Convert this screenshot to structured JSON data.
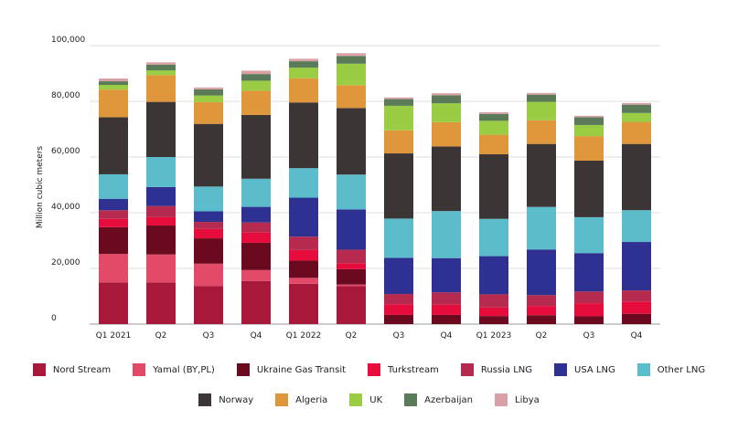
{
  "chart_data": {
    "type": "bar",
    "stacked": true,
    "ylabel": "Million cubic meters",
    "xlabel": "",
    "ylim": [
      0,
      100000
    ],
    "yticks": [
      0,
      20000,
      40000,
      60000,
      80000,
      100000
    ],
    "ytick_labels": [
      "0",
      "20,000",
      "40,000",
      "60,000",
      "80,000",
      "100,000"
    ],
    "categories": [
      "Q1 2021",
      "Q2",
      "Q3",
      "Q4",
      "Q1 2022",
      "Q2",
      "Q3",
      "Q4",
      "Q1 2023",
      "Q2",
      "Q3",
      "Q4"
    ],
    "grid": true,
    "legend_position": "bottom",
    "series": [
      {
        "name": "Nord Stream",
        "color": "#a8183a",
        "values": [
          15000,
          15000,
          13700,
          15500,
          14500,
          13700,
          0,
          0,
          0,
          0,
          0,
          0
        ]
      },
      {
        "name": "Yamal (BY,PL)",
        "color": "#e34a68",
        "values": [
          10200,
          10000,
          8000,
          3900,
          2100,
          500,
          0,
          0,
          0,
          0,
          0,
          0
        ]
      },
      {
        "name": "Ukraine Gas Transit",
        "color": "#6b0a1e",
        "values": [
          9600,
          10400,
          9100,
          9800,
          6200,
          5500,
          3300,
          3300,
          2900,
          3200,
          2800,
          3700
        ]
      },
      {
        "name": "Turkstream",
        "color": "#e60c3c",
        "values": [
          3000,
          3000,
          3400,
          3700,
          3800,
          2200,
          3800,
          3700,
          3100,
          3300,
          4700,
          4400
        ]
      },
      {
        "name": "Russia LNG",
        "color": "#b52a4e",
        "values": [
          3100,
          4000,
          2500,
          3600,
          4800,
          4800,
          3700,
          4400,
          4700,
          3900,
          4200,
          4000
        ]
      },
      {
        "name": "USA LNG",
        "color": "#2e3192",
        "values": [
          4100,
          6800,
          3800,
          5600,
          14000,
          14500,
          13000,
          12300,
          13700,
          16400,
          13800,
          17400
        ]
      },
      {
        "name": "Other LNG",
        "color": "#5bbccc",
        "values": [
          8800,
          10800,
          8900,
          10100,
          10600,
          12500,
          14100,
          16900,
          13400,
          15300,
          12900,
          11400
        ]
      },
      {
        "name": "Norway",
        "color": "#3b3535",
        "values": [
          20500,
          19800,
          22500,
          22900,
          23600,
          23900,
          23400,
          23200,
          23200,
          22600,
          20300,
          23800
        ]
      },
      {
        "name": "Algeria",
        "color": "#e0963a",
        "values": [
          9900,
          9600,
          7800,
          8700,
          8700,
          8200,
          8300,
          8700,
          7000,
          8500,
          8800,
          7900
        ]
      },
      {
        "name": "UK",
        "color": "#9acd44",
        "values": [
          1700,
          1700,
          2400,
          3600,
          3800,
          7700,
          8800,
          6800,
          5000,
          6600,
          4000,
          3200
        ]
      },
      {
        "name": "Azerbaijan",
        "color": "#5b7a58",
        "values": [
          1300,
          2100,
          2200,
          2400,
          2300,
          2800,
          2400,
          2900,
          2500,
          2600,
          2800,
          3000
        ]
      },
      {
        "name": "Libya",
        "color": "#d9a0a6",
        "values": [
          1000,
          800,
          700,
          1200,
          900,
          1000,
          600,
          700,
          600,
          600,
          500,
          600
        ]
      }
    ]
  }
}
